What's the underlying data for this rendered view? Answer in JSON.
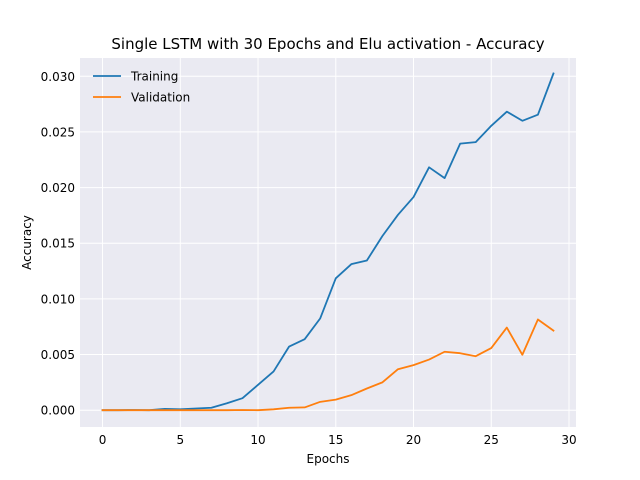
{
  "chart_data": {
    "type": "line",
    "title": "Single LSTM with 30 Epochs and Elu activation - Accuracy",
    "xlabel": "Epochs",
    "ylabel": "Accuracy",
    "xlim": [
      -1.45,
      30.45
    ],
    "ylim": [
      -0.00151,
      0.03164
    ],
    "xticks": [
      0,
      5,
      10,
      15,
      20,
      25,
      30
    ],
    "yticks": [
      0.0,
      0.005,
      0.01,
      0.015,
      0.02,
      0.025,
      0.03
    ],
    "ytick_labels": [
      "0.000",
      "0.005",
      "0.010",
      "0.015",
      "0.020",
      "0.025",
      "0.030"
    ],
    "grid": true,
    "legend_position": "top-left",
    "x": [
      0,
      1,
      2,
      3,
      4,
      5,
      6,
      7,
      8,
      9,
      10,
      11,
      12,
      13,
      14,
      15,
      16,
      17,
      18,
      19,
      20,
      21,
      22,
      23,
      24,
      25,
      26,
      27,
      28,
      29
    ],
    "series": [
      {
        "name": "Training",
        "color": "#1f77b4",
        "values": [
          0.0,
          0.0,
          2e-05,
          0.0,
          0.00012,
          8e-05,
          0.00015,
          0.00022,
          0.00062,
          0.00108,
          0.00228,
          0.00348,
          0.00572,
          0.00638,
          0.00825,
          0.01185,
          0.01312,
          0.01345,
          0.01565,
          0.01755,
          0.01915,
          0.02182,
          0.02085,
          0.02395,
          0.02408,
          0.02555,
          0.02682,
          0.026,
          0.02655,
          0.03025
        ]
      },
      {
        "name": "Validation",
        "color": "#ff7f0e",
        "values": [
          0.0,
          0.0,
          0.0,
          0.0,
          0.0,
          0.0,
          0.0,
          0.0,
          0.0,
          2e-05,
          0.0,
          8e-05,
          0.00022,
          0.00025,
          0.00075,
          0.00095,
          0.00135,
          0.00195,
          0.0025,
          0.00368,
          0.00405,
          0.00455,
          0.00525,
          0.00512,
          0.00485,
          0.00558,
          0.00742,
          0.00498,
          0.00815,
          0.00715
        ]
      }
    ]
  }
}
